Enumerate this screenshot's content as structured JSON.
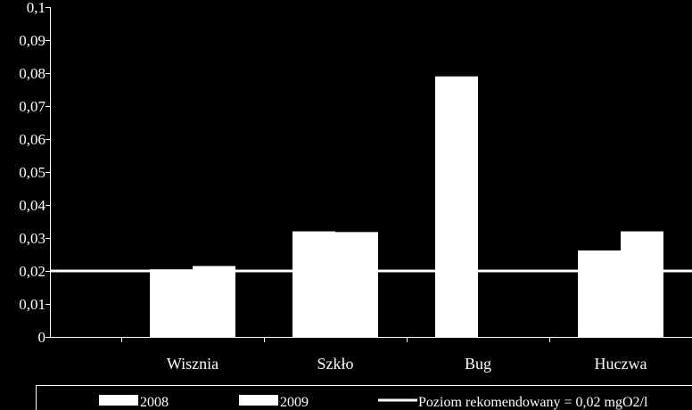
{
  "chart_data": {
    "type": "bar",
    "categories": [
      "Wisznia",
      "Szkło",
      "Bug",
      "Huczwa"
    ],
    "series": [
      {
        "name": "2008",
        "values": [
          0.0205,
          0.032,
          0.079,
          0.0262
        ]
      },
      {
        "name": "2009",
        "values": [
          0.0215,
          0.0318,
          null,
          0.032
        ]
      }
    ],
    "reference_line": {
      "name": "Poziom rekomendowany = 0,02 mgO2/l",
      "value": 0.02
    },
    "ylim": [
      0,
      0.1
    ],
    "yticks": [
      0,
      0.01,
      0.02,
      0.03,
      0.04,
      0.05,
      0.06,
      0.07,
      0.08,
      0.09,
      0.1
    ],
    "ytick_labels": [
      "0",
      "0,01",
      "0,02",
      "0,03",
      "0,04",
      "0,05",
      "0,06",
      "0,07",
      "0,08",
      "0,09",
      "0,1"
    ],
    "legend_position": "bottom",
    "grid": false,
    "colors": {
      "background": "#000000",
      "bars": "#ffffff",
      "axis": "#ffffff",
      "reference_line": "#ffffff"
    }
  }
}
